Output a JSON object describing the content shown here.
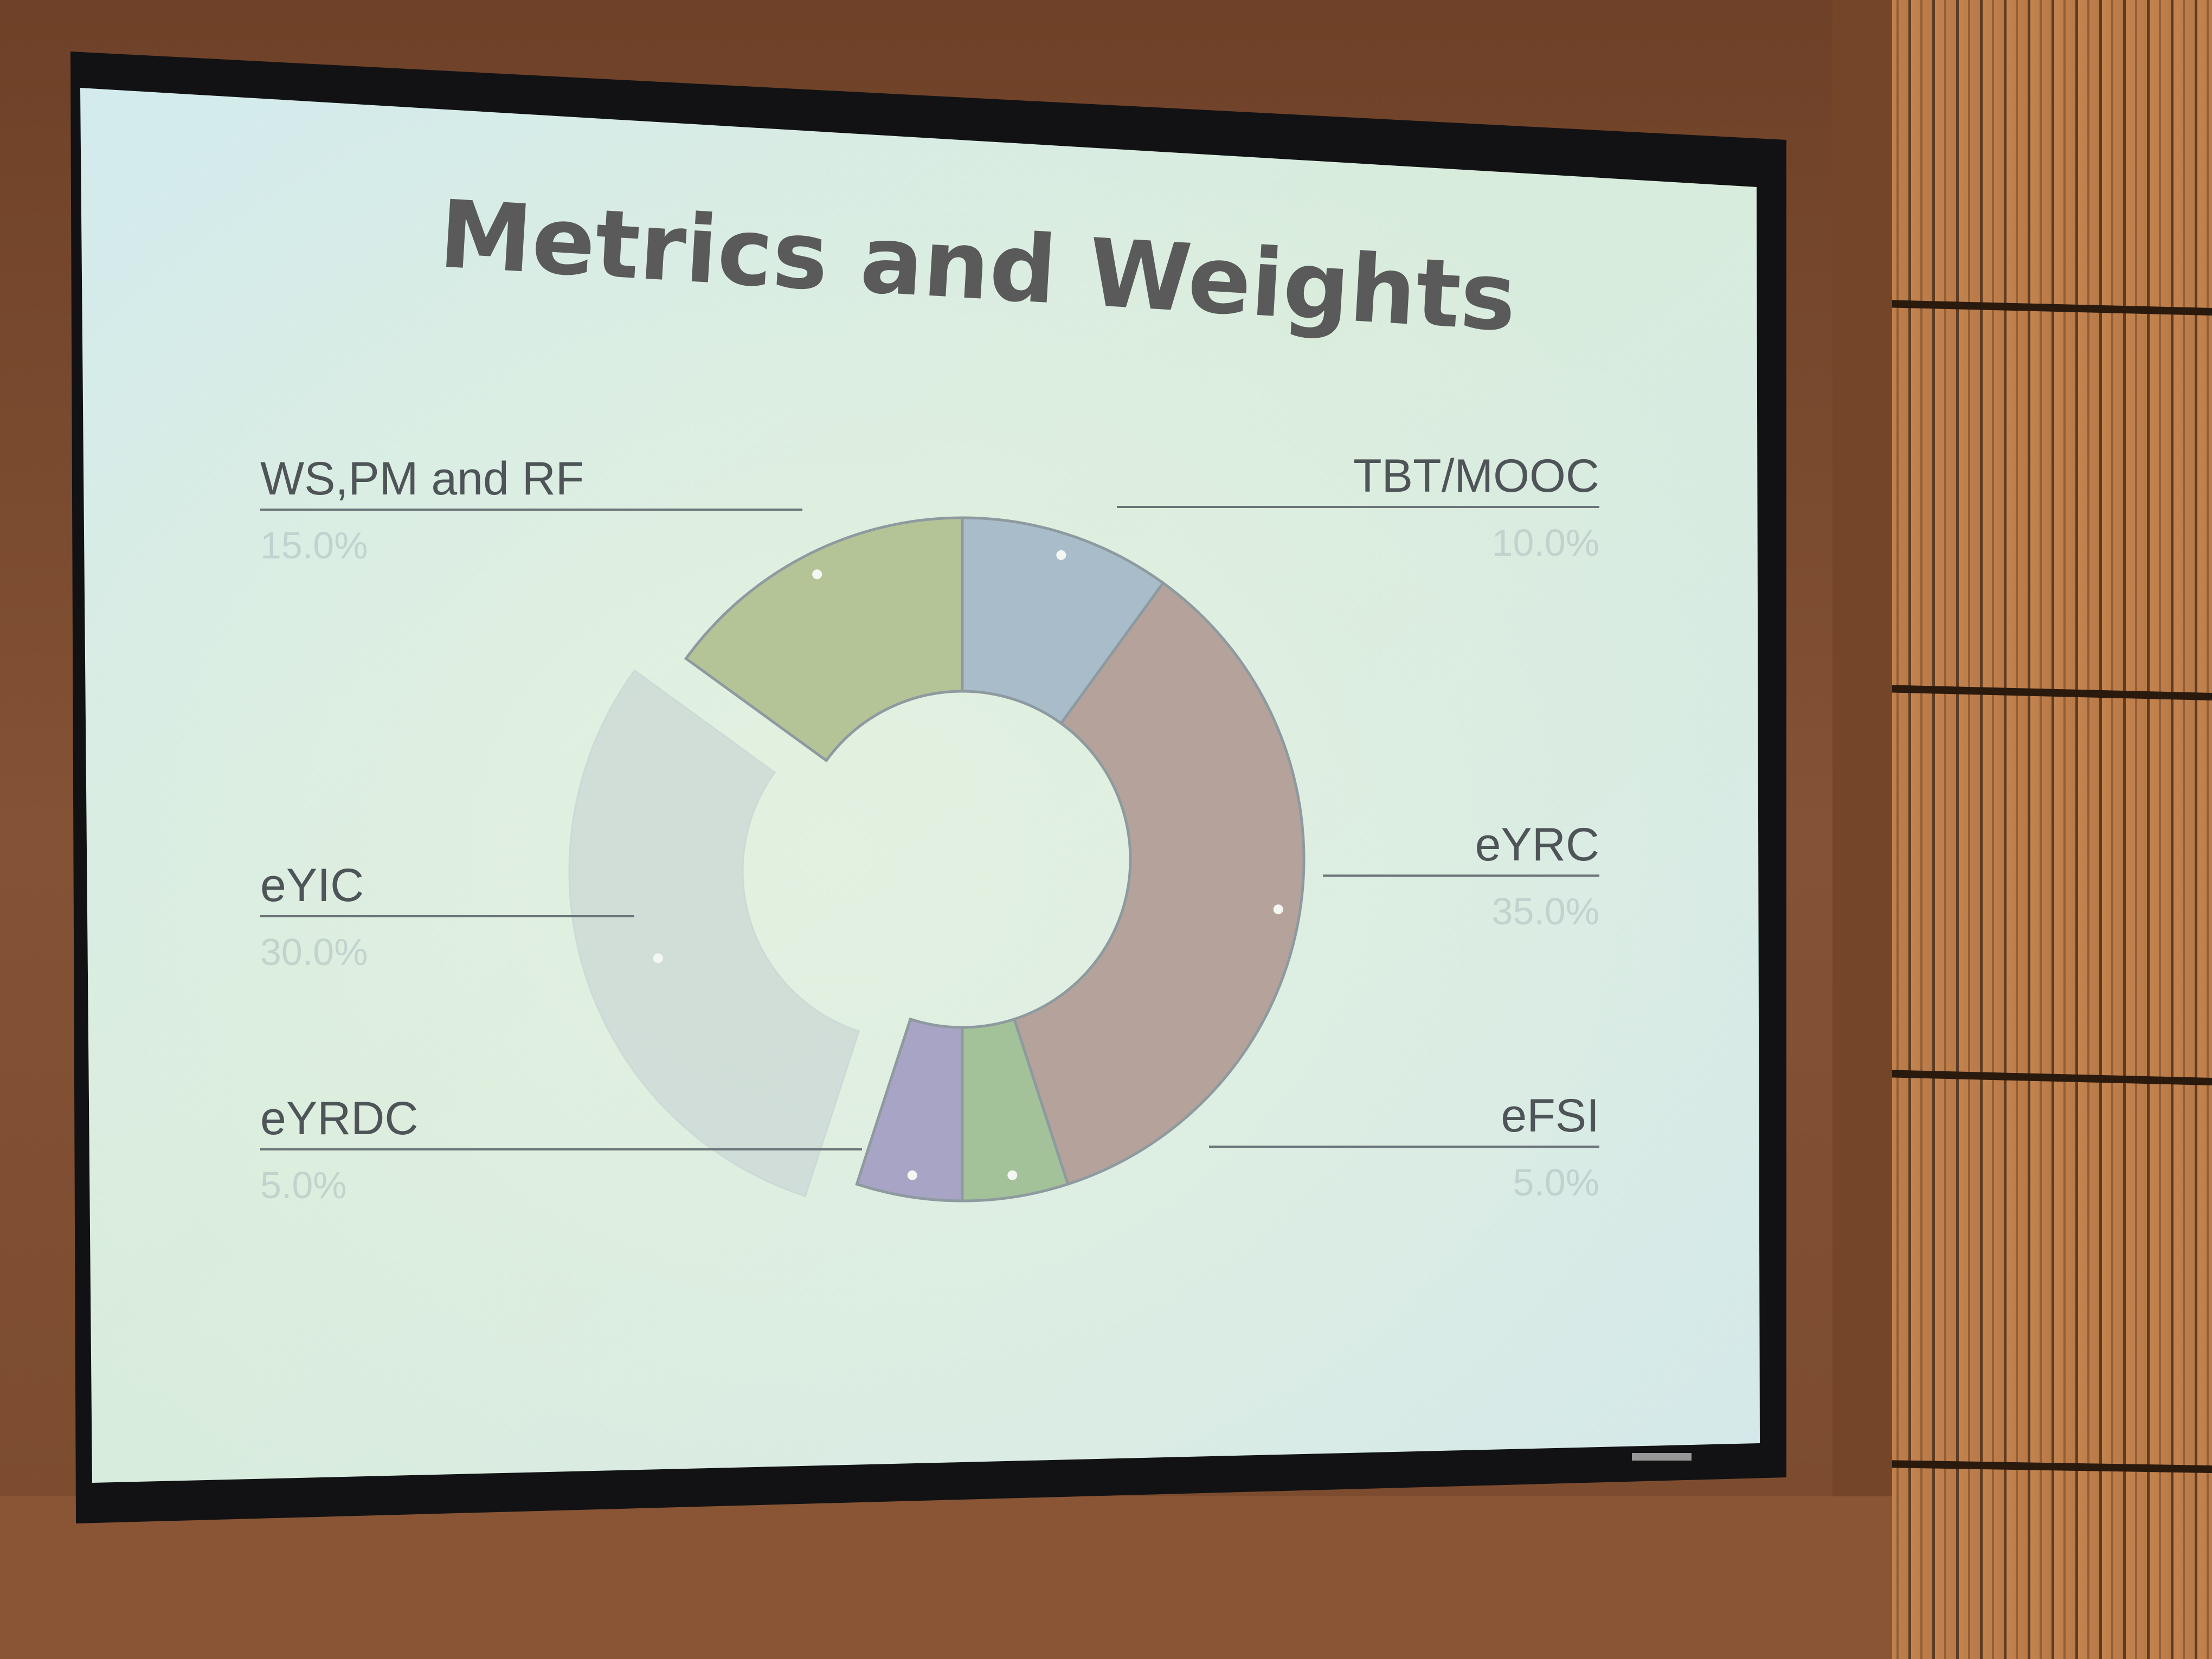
{
  "slide": {
    "title": "Metrics and Weights"
  },
  "chart_data": {
    "type": "pie",
    "variant": "donut",
    "legend": "callout labels",
    "categories": [
      "TBT/MOOC",
      "eYRC",
      "eFSI",
      "eYRDC",
      "eYIC",
      "WS,PM and RF"
    ],
    "values": [
      10,
      35,
      5,
      5,
      30,
      15
    ],
    "value_labels": [
      "10.0%",
      "35.0%",
      "5.0%",
      "5.0%",
      "30.0%",
      "15.0%"
    ],
    "colors": [
      "#a9bcc9",
      "#b5a39b",
      "#a3c29a",
      "#a7a4c5",
      "#ccd8d6",
      "#b5c497"
    ]
  }
}
